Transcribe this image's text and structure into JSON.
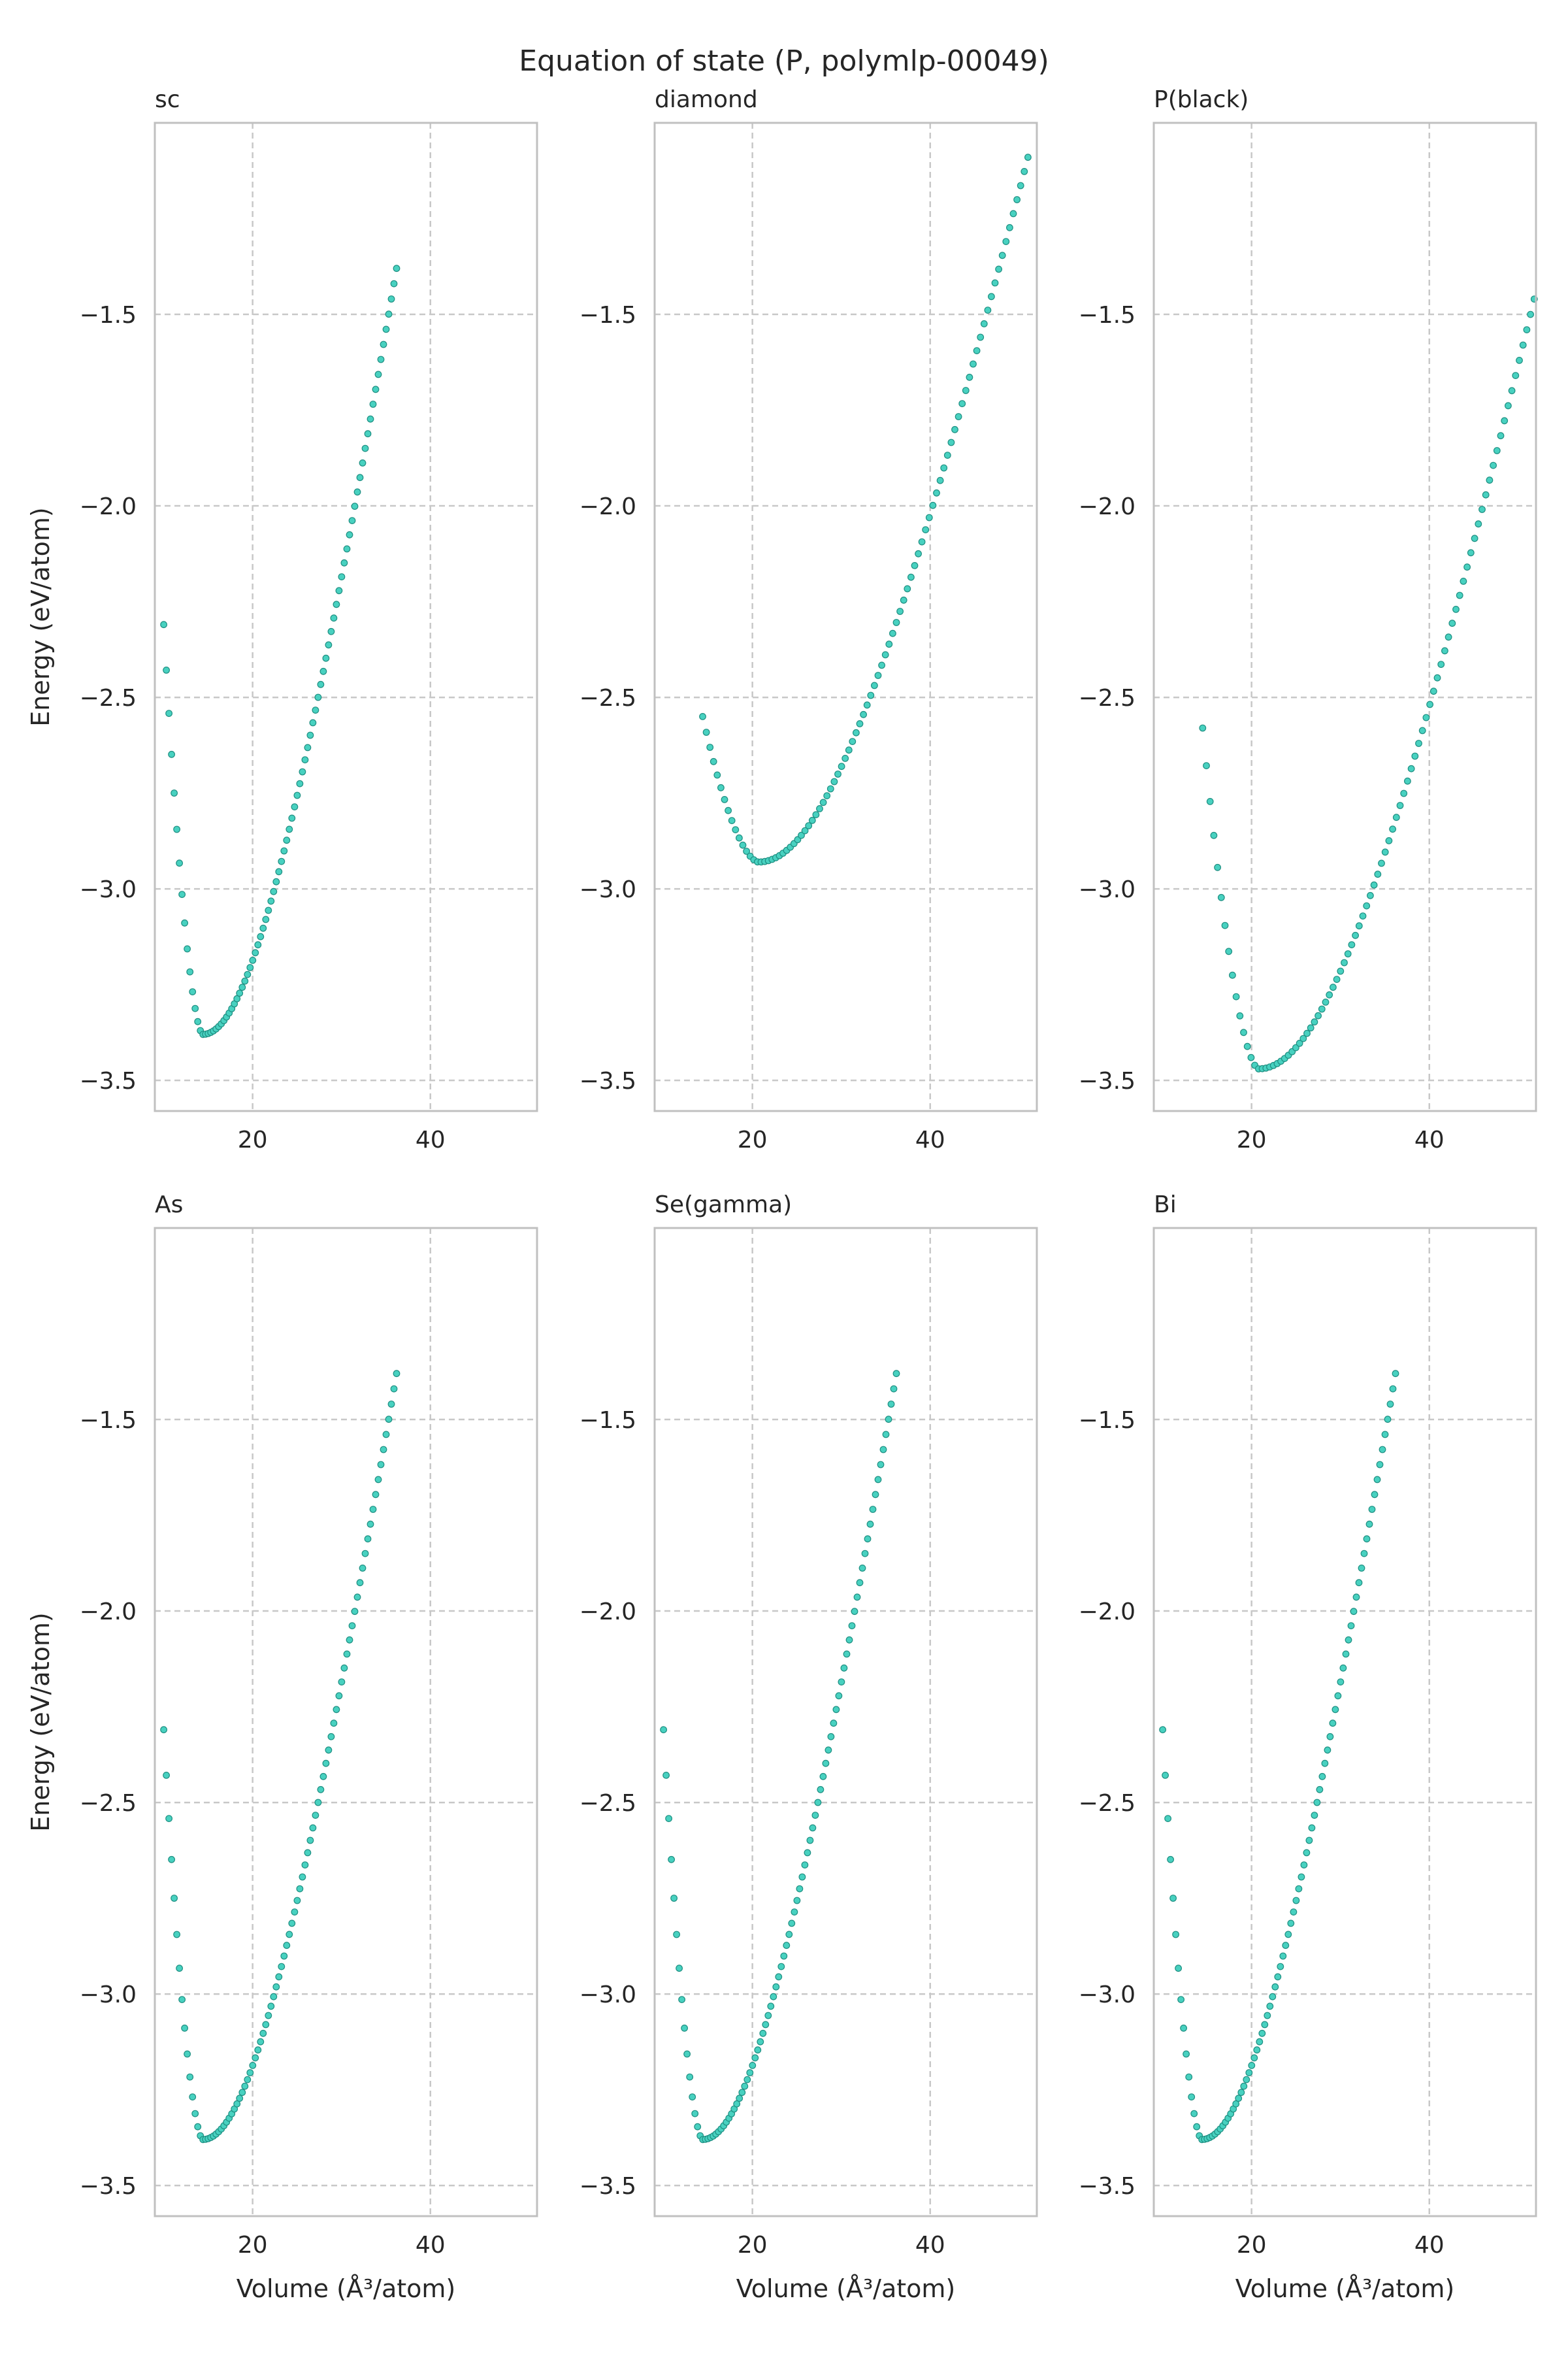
{
  "figure_title": "Equation of state (P, polymlp-00049)",
  "colors": {
    "point": "#48d1c0",
    "edge": "#1f8f82",
    "grid": "#c8c8c8",
    "frame": "#c0c0c0",
    "text": "#262626"
  },
  "chart_data": [
    {
      "type": "scatter",
      "title": "sc",
      "xlabel": "",
      "ylabel": "Energy (eV/atom)",
      "xlim": [
        9,
        52
      ],
      "ylim": [
        -3.58,
        -1.0
      ],
      "xticks": [
        20,
        40
      ],
      "yticks": [
        -3.5,
        -3.0,
        -2.5,
        -2.0,
        -1.5
      ],
      "xtick_labels": [
        "20",
        "40"
      ],
      "ytick_labels": [
        "−3.5",
        "−3.0",
        "−2.5",
        "−2.0",
        "−1.5"
      ],
      "grid": true,
      "curve": {
        "v_start": 10.0,
        "v_end": 36.2,
        "n_points": 90,
        "v_min": 14.4,
        "e_min": -3.38,
        "e_start": -2.31,
        "e_end": -1.38
      }
    },
    {
      "type": "scatter",
      "title": "diamond",
      "xlabel": "",
      "ylabel": "",
      "xlim": [
        9,
        52
      ],
      "ylim": [
        -3.58,
        -1.0
      ],
      "xticks": [
        20,
        40
      ],
      "yticks": [
        -3.5,
        -3.0,
        -2.5,
        -2.0,
        -1.5
      ],
      "xtick_labels": [
        "20",
        "40"
      ],
      "ytick_labels": [
        "−3.5",
        "−3.0",
        "−2.5",
        "−2.0",
        "−1.5"
      ],
      "grid": true,
      "curve": {
        "v_start": 14.4,
        "v_end": 51.0,
        "n_points": 90,
        "v_min": 20.7,
        "e_min": -2.93,
        "e_start": -2.55,
        "e_end": -1.09
      }
    },
    {
      "type": "scatter",
      "title": "P(black)",
      "xlabel": "",
      "ylabel": "",
      "xlim": [
        9,
        52
      ],
      "ylim": [
        -3.58,
        -1.0
      ],
      "xticks": [
        20,
        40
      ],
      "yticks": [
        -3.5,
        -3.0,
        -2.5,
        -2.0,
        -1.5
      ],
      "xtick_labels": [
        "20",
        "40"
      ],
      "ytick_labels": [
        "−3.5",
        "−3.0",
        "−2.5",
        "−2.0",
        "−1.5"
      ],
      "grid": true,
      "curve": {
        "v_start": 14.5,
        "v_end": 51.8,
        "n_points": 90,
        "v_min": 20.8,
        "e_min": -3.47,
        "e_start": -2.58,
        "e_end": -1.46
      }
    },
    {
      "type": "scatter",
      "title": "As",
      "xlabel": "Volume (Å³/atom)",
      "ylabel": "Energy (eV/atom)",
      "xlim": [
        9,
        52
      ],
      "ylim": [
        -3.58,
        -1.0
      ],
      "xticks": [
        20,
        40
      ],
      "yticks": [
        -3.5,
        -3.0,
        -2.5,
        -2.0,
        -1.5
      ],
      "xtick_labels": [
        "20",
        "40"
      ],
      "ytick_labels": [
        "−3.5",
        "−3.0",
        "−2.5",
        "−2.0",
        "−1.5"
      ],
      "grid": true,
      "curve": {
        "v_start": 10.0,
        "v_end": 36.2,
        "n_points": 90,
        "v_min": 14.4,
        "e_min": -3.38,
        "e_start": -2.31,
        "e_end": -1.38
      }
    },
    {
      "type": "scatter",
      "title": "Se(gamma)",
      "xlabel": "Volume (Å³/atom)",
      "ylabel": "",
      "xlim": [
        9,
        52
      ],
      "ylim": [
        -3.58,
        -1.0
      ],
      "xticks": [
        20,
        40
      ],
      "yticks": [
        -3.5,
        -3.0,
        -2.5,
        -2.0,
        -1.5
      ],
      "xtick_labels": [
        "20",
        "40"
      ],
      "ytick_labels": [
        "−3.5",
        "−3.0",
        "−2.5",
        "−2.0",
        "−1.5"
      ],
      "grid": true,
      "curve": {
        "v_start": 10.0,
        "v_end": 36.2,
        "n_points": 90,
        "v_min": 14.4,
        "e_min": -3.38,
        "e_start": -2.31,
        "e_end": -1.38
      }
    },
    {
      "type": "scatter",
      "title": "Bi",
      "xlabel": "Volume (Å³/atom)",
      "ylabel": "",
      "xlim": [
        9,
        52
      ],
      "ylim": [
        -3.58,
        -1.0
      ],
      "xticks": [
        20,
        40
      ],
      "yticks": [
        -3.5,
        -3.0,
        -2.5,
        -2.0,
        -1.5
      ],
      "xtick_labels": [
        "20",
        "40"
      ],
      "ytick_labels": [
        "−3.5",
        "−3.0",
        "−2.5",
        "−2.0",
        "−1.5"
      ],
      "grid": true,
      "curve": {
        "v_start": 10.0,
        "v_end": 36.2,
        "n_points": 90,
        "v_min": 14.4,
        "e_min": -3.38,
        "e_start": -2.31,
        "e_end": -1.38
      }
    }
  ]
}
